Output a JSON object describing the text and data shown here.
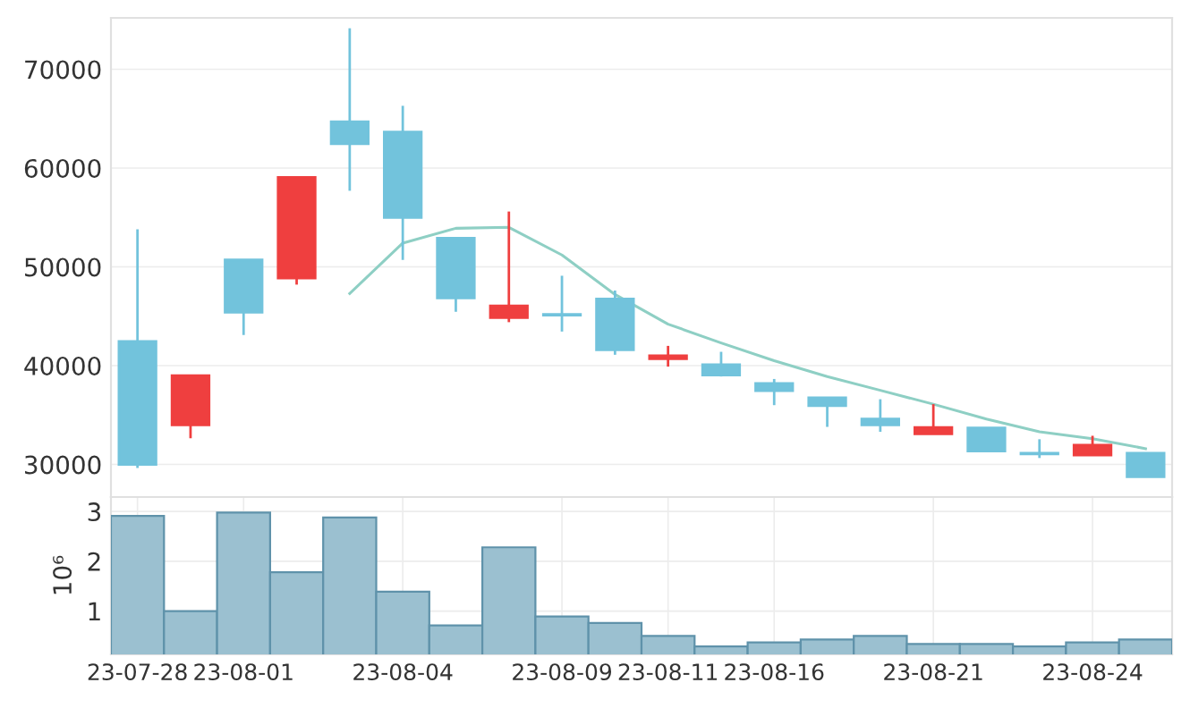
{
  "chart_data": [
    {
      "type": "candlestick",
      "grid": "y",
      "categories": [
        null,
        null,
        null,
        null,
        null,
        null,
        null,
        null,
        null,
        null,
        null,
        null,
        null,
        null,
        null,
        null,
        null,
        null,
        null,
        null
      ],
      "ylim": [
        26700,
        75200
      ],
      "yticks": [
        30000,
        40000,
        50000,
        60000,
        70000
      ],
      "series": [
        {
          "type": "candlestick",
          "colors": [
            "#72c3dc",
            "#ef3f3f",
            "#72c3dc",
            "#ef3f3f",
            "#72c3dc",
            "#72c3dc",
            "#72c3dc",
            "#ef3f3f",
            "#72c3dc",
            "#72c3dc",
            "#ef3f3f",
            "#72c3dc",
            "#72c3dc",
            "#72c3dc",
            "#72c3dc",
            "#ef3f3f",
            "#72c3dc",
            "#72c3dc",
            "#ef3f3f",
            "#72c3dc"
          ],
          "ohlc": [
            [
              42450,
              53800,
              29640,
              30000
            ],
            [
              34000,
              39000,
              32650,
              39000
            ],
            [
              50700,
              50700,
              43100,
              45400
            ],
            [
              48850,
              59050,
              48200,
              59050
            ],
            [
              64700,
              74150,
              57700,
              62450
            ],
            [
              63650,
              66300,
              50700,
              55000
            ],
            [
              52900,
              52900,
              45450,
              46850
            ],
            [
              44850,
              55600,
              44400,
              46050
            ],
            [
              45200,
              49100,
              43450,
              45100
            ],
            [
              46750,
              47600,
              41100,
              41600
            ],
            [
              40700,
              42000,
              39900,
              41000
            ],
            [
              40100,
              41400,
              38900,
              39050
            ],
            [
              38200,
              38650,
              36000,
              37450
            ],
            [
              36750,
              36750,
              33800,
              35950
            ],
            [
              34600,
              36600,
              33300,
              34000
            ],
            [
              33100,
              36100,
              33100,
              33750
            ],
            [
              33700,
              33700,
              31350,
              31350
            ],
            [
              31150,
              32550,
              30650,
              31050
            ],
            [
              30950,
              32900,
              30950,
              31950
            ],
            [
              31150,
              31150,
              28750,
              28750
            ]
          ]
        },
        {
          "type": "line",
          "color": "#8ecfc4",
          "values": [
            null,
            null,
            null,
            null,
            47300,
            52400,
            53900,
            54000,
            51200,
            47200,
            44200,
            42300,
            40500,
            38900,
            37500,
            36100,
            34600,
            33300,
            32600,
            31600
          ]
        }
      ]
    },
    {
      "type": "bar",
      "grid": true,
      "ylabel": "10⁶",
      "color": "#9bc0d0",
      "categories": [
        "23-07-28",
        null,
        "23-08-01",
        null,
        null,
        "23-08-04",
        null,
        null,
        "23-08-09",
        null,
        "23-08-11",
        null,
        "23-08-16",
        null,
        null,
        "23-08-21",
        null,
        null,
        "23-08-24",
        null
      ],
      "values": [
        2.91,
        1.0,
        2.98,
        1.78,
        2.88,
        1.39,
        0.71,
        2.28,
        0.89,
        0.76,
        0.5,
        0.29,
        0.37,
        0.43,
        0.5,
        0.34,
        0.34,
        0.29,
        0.37,
        0.43
      ],
      "ylim": [
        0.13,
        3.29
      ],
      "yticks": [
        1,
        2,
        3
      ]
    }
  ]
}
